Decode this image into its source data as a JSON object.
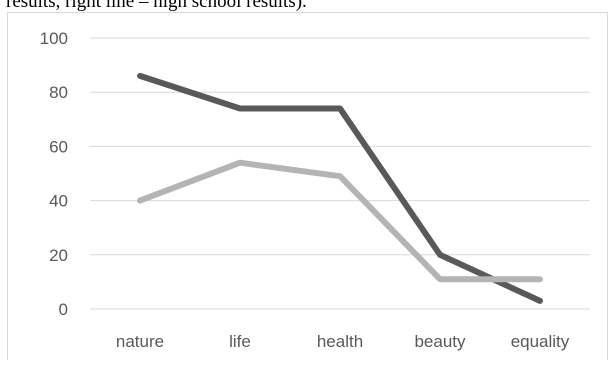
{
  "caption": "results, right line – high school results).",
  "chart_data": {
    "type": "line",
    "title": "",
    "xlabel": "",
    "ylabel": "",
    "categories": [
      "nature",
      "life",
      "health",
      "beauty",
      "equality"
    ],
    "ylim": [
      0,
      100
    ],
    "yticks": [
      0,
      20,
      40,
      60,
      80,
      100
    ],
    "grid": true,
    "legend": "none",
    "series": [
      {
        "color": "#595959",
        "values": [
          86,
          74,
          74,
          20,
          3
        ]
      },
      {
        "color": "#b4b4b4",
        "values": [
          40,
          54,
          49,
          11,
          11
        ]
      }
    ]
  }
}
